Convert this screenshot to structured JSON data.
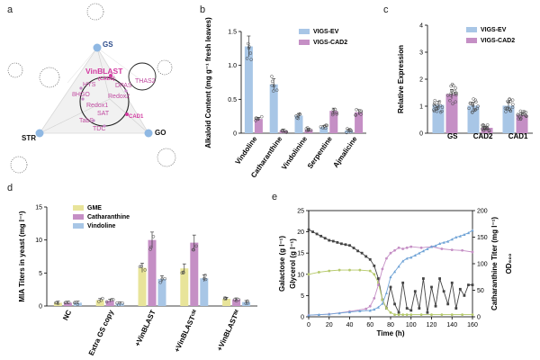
{
  "panels": {
    "a": "a",
    "b": "b",
    "c": "c",
    "d": "d",
    "e": "e"
  },
  "colors": {
    "ev": "#a8c6e6",
    "cad2": "#c58fc5",
    "gme": "#e8e49a",
    "blue": "#6fa3d6",
    "magenta": "#d23aa0",
    "green": "#b5c96a"
  },
  "network": {
    "nodes": {
      "gs": "GS",
      "str": "STR",
      "go": "GO"
    },
    "vinblast": "VinBLAST",
    "cad2": "(CAD2)",
    "cad1": "CAD1",
    "enzymes": [
      "HYS",
      "DPAS",
      "8HGO",
      "Redox2",
      "Redox1",
      "SAT",
      "TabS",
      "TDC",
      "THAS2"
    ]
  },
  "chart_data": [
    {
      "panel": "b",
      "type": "bar",
      "ylabel": "Alkaloid Content (mg g⁻¹ fresh leaves)",
      "ylim": [
        0,
        1.5
      ],
      "yticks": [
        "0",
        "0.5",
        "1.0",
        "1.5"
      ],
      "categories": [
        "Vindoline",
        "Catharanthine",
        "Vindolinine",
        "Serpentine",
        "Ajmalicine"
      ],
      "series": [
        {
          "name": "VIGS-EV",
          "values": [
            1.28,
            0.72,
            0.26,
            0.09,
            0.04
          ]
        },
        {
          "name": "VIGS-CAD2",
          "values": [
            0.21,
            0.04,
            0.05,
            0.33,
            0.31
          ]
        }
      ]
    },
    {
      "panel": "c",
      "type": "bar",
      "ylabel": "Relative Expression",
      "ylim": [
        0,
        4
      ],
      "yticks": [
        "0",
        "1",
        "2",
        "3",
        "4"
      ],
      "categories": [
        "GS",
        "CAD2",
        "CAD1"
      ],
      "series": [
        {
          "name": "VIGS-EV",
          "values": [
            1.05,
            1.02,
            1.02
          ]
        },
        {
          "name": "VIGS-CAD2",
          "values": [
            1.45,
            0.2,
            0.68
          ]
        }
      ]
    },
    {
      "panel": "d",
      "type": "bar",
      "ylabel": "MIA Titers in yeast (mg l⁻¹)",
      "ylim": [
        0,
        15
      ],
      "yticks": [
        "0",
        "5",
        "10",
        "15"
      ],
      "categories": [
        "NC",
        "Extra GS copy",
        "+VinBLAST",
        "+VinBLASTᶜᴹ",
        "+VinBLASTᴵᴹ"
      ],
      "series": [
        {
          "name": "GME",
          "values": [
            0.5,
            0.9,
            5.8,
            5.7,
            1.1
          ]
        },
        {
          "name": "Catharanthine",
          "values": [
            0.5,
            0.8,
            10.0,
            9.6,
            1.0
          ]
        },
        {
          "name": "Vindoline",
          "values": [
            0.5,
            0.4,
            4.1,
            4.2,
            0.6
          ]
        }
      ]
    },
    {
      "panel": "e",
      "type": "line",
      "xlabel": "Time (h)",
      "ylabel_left": "Galactose (g l⁻¹)",
      "ylabel_left2": "Glycerol (g l⁻¹)",
      "ylabel_right": "Catharanthine Titer (mg l⁻¹)",
      "ylabel_right2": "OD₆₀₀",
      "xlim": [
        0,
        160
      ],
      "ylim_left": [
        0,
        25
      ],
      "ylim_right": [
        0,
        200
      ],
      "xticks": [
        "0",
        "20",
        "40",
        "60",
        "80",
        "100",
        "120",
        "140",
        "160"
      ],
      "yticks_left": [
        "0",
        "5",
        "10",
        "15",
        "20",
        "25"
      ],
      "yticks_right": [
        "0",
        "50",
        "100",
        "150",
        "200"
      ],
      "series": [
        {
          "name": "Galactose",
          "axis": "left",
          "x": [
            0,
            4,
            8,
            12,
            16,
            20,
            24,
            28,
            32,
            36,
            40,
            44,
            48,
            52,
            56,
            60,
            64,
            68,
            72,
            76,
            80,
            84,
            88,
            92,
            96,
            100,
            104,
            108,
            112,
            116,
            120,
            124,
            128,
            132,
            136,
            140,
            144,
            148,
            152,
            156,
            160
          ],
          "y": [
            20.5,
            20,
            19.5,
            19,
            18.5,
            18,
            17.8,
            17.5,
            17.2,
            17,
            16.8,
            16.2,
            15.5,
            15,
            14.2,
            13.5,
            12,
            9,
            4,
            2,
            7,
            3,
            1,
            8,
            2,
            1.5,
            6,
            2,
            9,
            1,
            7,
            2.5,
            9,
            6,
            3,
            8,
            2,
            6.5,
            5,
            7.5,
            7.5
          ]
        },
        {
          "name": "Glycerol",
          "axis": "left",
          "x": [
            0,
            10,
            20,
            30,
            40,
            50,
            60,
            64,
            68,
            72,
            76,
            80,
            84,
            88,
            92,
            96,
            100,
            110,
            120,
            130,
            140,
            150,
            160
          ],
          "y": [
            10,
            10.5,
            10.8,
            11,
            11,
            11,
            10.8,
            10,
            8,
            4,
            2,
            1,
            0.5,
            0.5,
            0.5,
            0.5,
            0.5,
            0.5,
            0.5,
            0.5,
            0.5,
            0.5,
            0.5
          ]
        },
        {
          "name": "OD600",
          "axis": "right",
          "x": [
            0,
            20,
            40,
            56,
            60,
            64,
            68,
            72,
            76,
            80,
            84,
            88,
            92,
            96,
            100,
            110,
            120,
            130,
            140,
            150,
            160
          ],
          "y": [
            3,
            5,
            10,
            15,
            20,
            35,
            60,
            90,
            110,
            120,
            125,
            130,
            128,
            130,
            132,
            130,
            132,
            128,
            126,
            125,
            122
          ]
        },
        {
          "name": "Catharanthine",
          "axis": "right",
          "x": [
            0,
            10,
            20,
            30,
            40,
            50,
            60,
            64,
            68,
            72,
            76,
            80,
            84,
            88,
            92,
            96,
            100,
            104,
            108,
            112,
            116,
            120,
            124,
            128,
            132,
            136,
            140,
            144,
            148,
            152,
            156,
            160
          ],
          "y": [
            3,
            4,
            5,
            7,
            9,
            11,
            12,
            14,
            18,
            25,
            45,
            75,
            85,
            95,
            105,
            110,
            112,
            116,
            120,
            124,
            128,
            132,
            134,
            138,
            140,
            142,
            146,
            150,
            152,
            155,
            158,
            163
          ]
        }
      ]
    }
  ]
}
